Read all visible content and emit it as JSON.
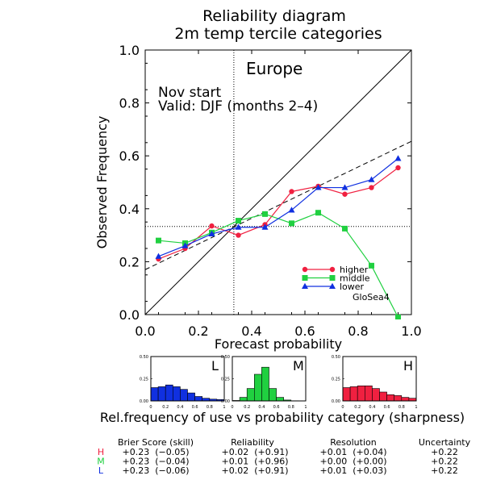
{
  "chart_data": {
    "type": "line",
    "title": "Reliability diagram",
    "subtitle": "2m temp tercile categories",
    "xlabel": "Forecast probability",
    "ylabel": "Observed Frequency",
    "xlim": [
      0,
      1
    ],
    "ylim": [
      0,
      1
    ],
    "xticks": [
      "0.0",
      "0.2",
      "0.4",
      "0.6",
      "0.8",
      "1.0"
    ],
    "yticks": [
      "0.0",
      "0.2",
      "0.4",
      "0.6",
      "0.8",
      "1.0"
    ],
    "region": "Europe",
    "annotation_line1": "Nov start",
    "annotation_line2": "Valid: DJF (months 2–4)",
    "model": "GloSea4",
    "climatology": 0.333,
    "diagonal": true,
    "legend_position": "bottom-right",
    "x": [
      0.05,
      0.15,
      0.25,
      0.35,
      0.45,
      0.55,
      0.65,
      0.75,
      0.85,
      0.95
    ],
    "series": [
      {
        "name": "higher",
        "marker": "circle",
        "color": "#f02040",
        "values": [
          0.21,
          0.25,
          0.335,
          0.3,
          0.34,
          0.465,
          0.485,
          0.455,
          0.48,
          0.555
        ]
      },
      {
        "name": "middle",
        "marker": "square",
        "color": "#20d040",
        "values": [
          0.28,
          0.27,
          0.31,
          0.355,
          0.38,
          0.345,
          0.385,
          0.325,
          0.185,
          -0.01
        ]
      },
      {
        "name": "lower",
        "marker": "triangle",
        "color": "#1030e0",
        "values": [
          0.22,
          0.26,
          0.305,
          0.33,
          0.33,
          0.395,
          0.48,
          0.48,
          0.51,
          0.59
        ]
      }
    ],
    "fitted_line": {
      "style": "dashed",
      "intercept": 0.17,
      "slope": 0.485
    },
    "sharpness": {
      "caption": "Rel.frequency of use vs probability category (sharpness)",
      "yticks": [
        "0.50",
        "0.25",
        "0.00"
      ],
      "ylim": [
        0,
        0.5
      ],
      "xticks": [
        "0",
        "0.2",
        "0.4",
        "0.6",
        "0.8",
        "1"
      ],
      "panels": [
        {
          "label": "L",
          "color": "#1030e0",
          "values": [
            0.15,
            0.16,
            0.18,
            0.16,
            0.13,
            0.09,
            0.05,
            0.03,
            0.02,
            0.015
          ]
        },
        {
          "label": "M",
          "color": "#20d040",
          "values": [
            0.005,
            0.04,
            0.14,
            0.3,
            0.38,
            0.14,
            0.04,
            0.01,
            0.002,
            0.0
          ]
        },
        {
          "label": "H",
          "color": "#f02040",
          "values": [
            0.15,
            0.16,
            0.17,
            0.17,
            0.14,
            0.1,
            0.07,
            0.06,
            0.04,
            0.03
          ]
        }
      ]
    },
    "stats": {
      "headers": [
        "Brier Score (skill)",
        "Reliability",
        "Resolution",
        "Uncertainty"
      ],
      "rows": [
        {
          "label": "H",
          "color": "#f02040",
          "cells": [
            "+0.23  (−0.05)",
            "+0.02  (+0.91)",
            "+0.01  (+0.04)",
            "+0.22"
          ]
        },
        {
          "label": "M",
          "color": "#20d040",
          "cells": [
            "+0.23  (−0.04)",
            "+0.01  (+0.96)",
            "+0.00  (+0.00)",
            "+0.22"
          ]
        },
        {
          "label": "L",
          "color": "#1030e0",
          "cells": [
            "+0.23  (−0.06)",
            "+0.02  (+0.91)",
            "+0.01  (+0.03)",
            "+0.22"
          ]
        }
      ]
    }
  }
}
